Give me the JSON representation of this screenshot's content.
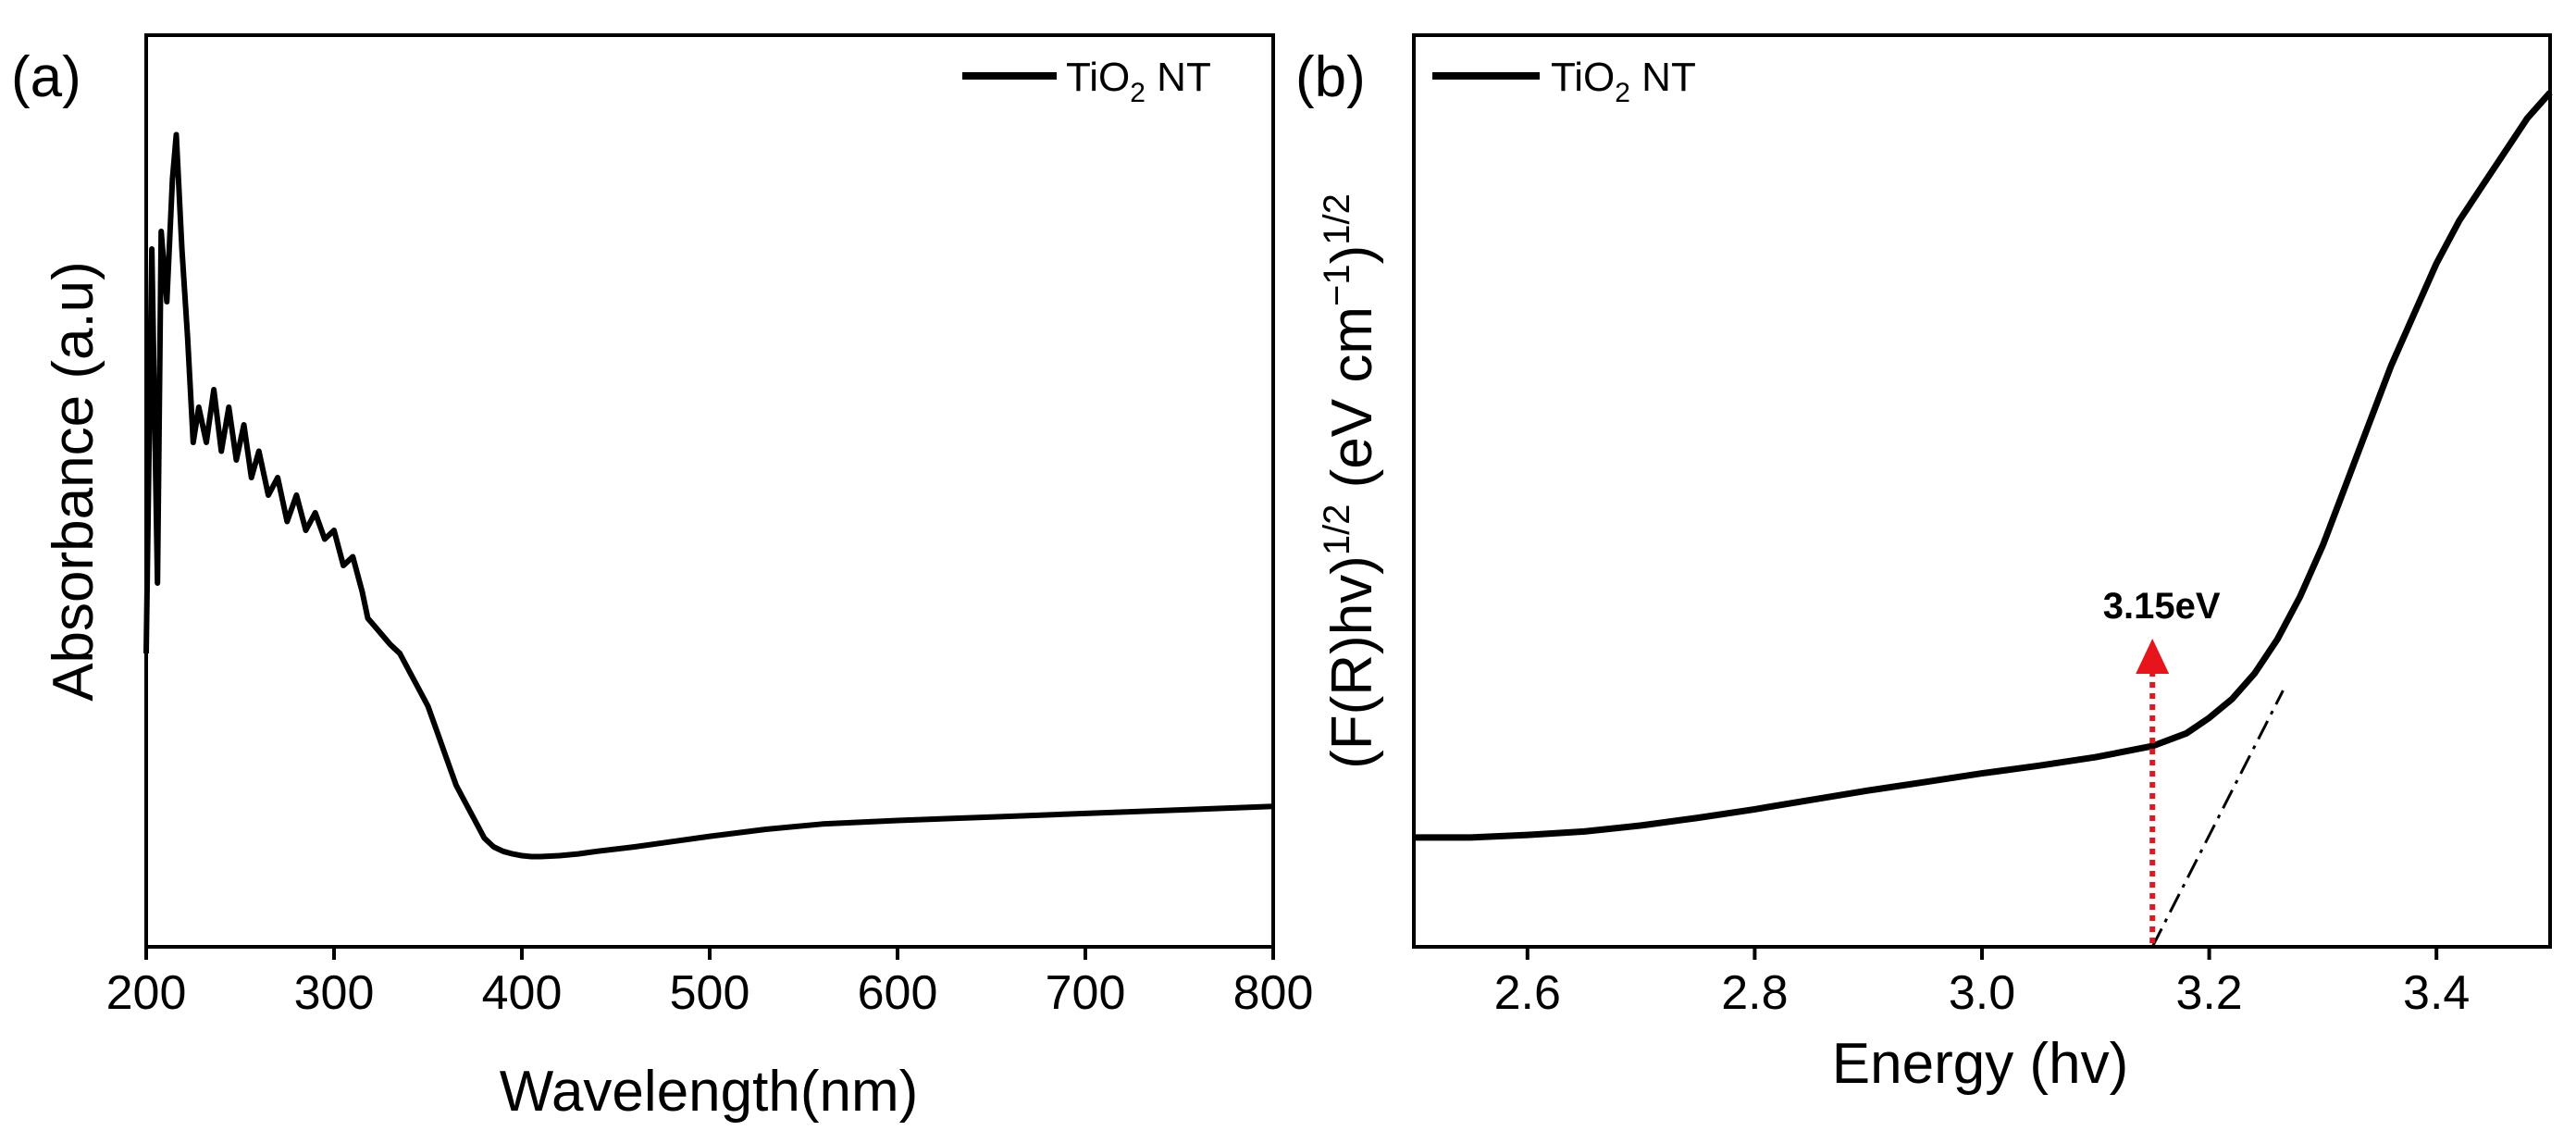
{
  "chart_data": [
    {
      "type": "line",
      "panel_label": "(a)",
      "xlabel": "Wavelength(nm)",
      "ylabel": "Absorbance (a.u)",
      "xlim": [
        200,
        800
      ],
      "ylim": [
        0,
        1
      ],
      "xticks": [
        "200",
        "300",
        "400",
        "500",
        "600",
        "700",
        "800"
      ],
      "yticks": [],
      "legend": {
        "position": "top-right",
        "label": "TiO",
        "sub": "2",
        "suffix": " NT"
      },
      "series": [
        {
          "name": "TiO2 NT",
          "x": [
            200,
            203,
            206,
            208,
            211,
            214,
            216,
            219,
            222,
            225,
            228,
            232,
            236,
            240,
            244,
            248,
            252,
            256,
            260,
            265,
            270,
            275,
            280,
            285,
            290,
            295,
            300,
            305,
            310,
            315,
            318,
            322,
            326,
            330,
            335,
            340,
            345,
            350,
            355,
            360,
            365,
            370,
            375,
            380,
            385,
            390,
            395,
            400,
            405,
            410,
            420,
            430,
            440,
            460,
            480,
            500,
            530,
            560,
            600,
            650,
            700,
            750,
            800
          ],
          "y": [
            0.32,
            0.78,
            0.4,
            0.8,
            0.72,
            0.86,
            0.91,
            0.78,
            0.68,
            0.56,
            0.6,
            0.56,
            0.62,
            0.55,
            0.6,
            0.54,
            0.58,
            0.52,
            0.55,
            0.5,
            0.52,
            0.47,
            0.5,
            0.46,
            0.48,
            0.45,
            0.46,
            0.42,
            0.43,
            0.39,
            0.36,
            0.35,
            0.34,
            0.33,
            0.32,
            0.3,
            0.28,
            0.26,
            0.23,
            0.2,
            0.17,
            0.15,
            0.13,
            0.11,
            0.1,
            0.095,
            0.092,
            0.09,
            0.089,
            0.089,
            0.09,
            0.092,
            0.095,
            0.1,
            0.106,
            0.112,
            0.12,
            0.126,
            0.13,
            0.134,
            0.138,
            0.142,
            0.146
          ]
        }
      ]
    },
    {
      "type": "line",
      "panel_label": "(b)",
      "xlabel": "Energy (hv)",
      "ylabel": "(F(R)hv)1/2 (eV cm−1)1/2",
      "ylabel_parts": {
        "p1": "(F(R)hv)",
        "sup1": "1/2",
        "p2": " (eV cm",
        "sup2": "−1",
        "p3": ")",
        "sup3": "1/2"
      },
      "xlim": [
        2.5,
        3.5
      ],
      "ylim": [
        0,
        1
      ],
      "xticks": [
        "2.6",
        "2.8",
        "3.0",
        "3.2",
        "3.4"
      ],
      "yticks": [],
      "legend": {
        "position": "top-left",
        "label": "TiO",
        "sub": "2",
        "suffix": " NT"
      },
      "series": [
        {
          "name": "TiO2 NT",
          "x": [
            2.5,
            2.55,
            2.6,
            2.65,
            2.7,
            2.75,
            2.8,
            2.85,
            2.9,
            2.95,
            3.0,
            3.05,
            3.1,
            3.15,
            3.18,
            3.2,
            3.22,
            3.24,
            3.26,
            3.28,
            3.3,
            3.32,
            3.34,
            3.36,
            3.38,
            3.4,
            3.42,
            3.44,
            3.46,
            3.48,
            3.5
          ],
          "y": [
            0.128,
            0.128,
            0.131,
            0.135,
            0.142,
            0.151,
            0.161,
            0.172,
            0.183,
            0.193,
            0.203,
            0.212,
            0.222,
            0.235,
            0.25,
            0.268,
            0.29,
            0.32,
            0.36,
            0.41,
            0.47,
            0.54,
            0.61,
            0.68,
            0.74,
            0.8,
            0.85,
            0.89,
            0.93,
            0.97,
            1.0
          ]
        },
        {
          "name": "tangent",
          "style": "dash-dot",
          "x": [
            3.15,
            3.265
          ],
          "y": [
            0.0,
            0.3
          ]
        }
      ],
      "annotations": [
        {
          "text": "3.15eV",
          "x": 3.15,
          "arrow": "up",
          "color": "#e8141b"
        }
      ]
    }
  ]
}
